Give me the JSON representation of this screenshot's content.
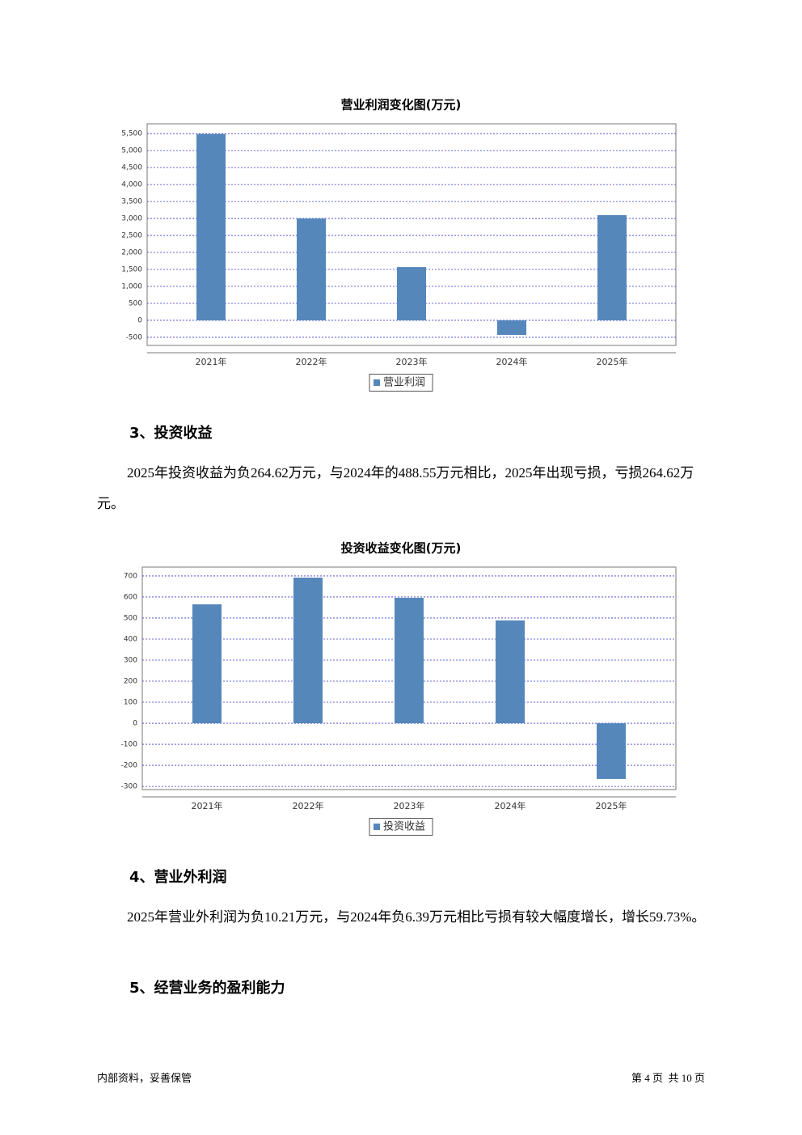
{
  "chart_data": [
    {
      "type": "bar",
      "title": "营业利润变化图(万元)",
      "categories": [
        "2021年",
        "2022年",
        "2023年",
        "2024年",
        "2025年"
      ],
      "series": [
        {
          "name": "营业利润",
          "color": "#5587bb",
          "values": [
            5490,
            3000,
            1570,
            -430,
            3100
          ]
        }
      ],
      "ylim": [
        -740,
        5790
      ],
      "yticks": [
        -500,
        0,
        500,
        {
          "value": 1000,
          "label": "1,000"
        },
        {
          "value": 1500,
          "label": "1,500"
        },
        {
          "value": 2000,
          "label": "2,000"
        },
        {
          "value": 2500,
          "label": "2,500"
        },
        {
          "value": 3000,
          "label": "3,000"
        },
        {
          "value": 3500,
          "label": "3,500"
        },
        {
          "value": 4000,
          "label": "4,000"
        },
        {
          "value": 4500,
          "label": "4,500"
        },
        {
          "value": 5000,
          "label": "5,000"
        },
        {
          "value": 5500,
          "label": "5,500"
        }
      ],
      "grid": true,
      "legend": "bottom"
    },
    {
      "type": "bar",
      "title": "投资收益变化图(万元)",
      "categories": [
        "2021年",
        "2022年",
        "2023年",
        "2024年",
        "2025年"
      ],
      "series": [
        {
          "name": "投资收益",
          "color": "#5587bb",
          "values": [
            565,
            692,
            596,
            488.55,
            -264.62
          ]
        }
      ],
      "ylim": [
        -315,
        742
      ],
      "yticks": [
        -300,
        -200,
        -100,
        0,
        100,
        200,
        300,
        400,
        500,
        600,
        700
      ],
      "grid": true,
      "legend": "bottom"
    }
  ],
  "sections": [
    {
      "heading": "3、投资收益",
      "paragraph": "2025年投资收益为负264.62万元，与2024年的488.55万元相比，2025年出现亏损，亏损264.62万元。"
    },
    {
      "heading": "4、营业外利润",
      "paragraph": "2025年营业外利润为负10.21万元，与2024年负6.39万元相比亏损有较大幅度增长，增长59.73%。"
    },
    {
      "heading": "5、经营业务的盈利能力"
    }
  ],
  "footer": {
    "left": "内部资料，妥善保管",
    "right": "第 4 页  共 10 页"
  }
}
